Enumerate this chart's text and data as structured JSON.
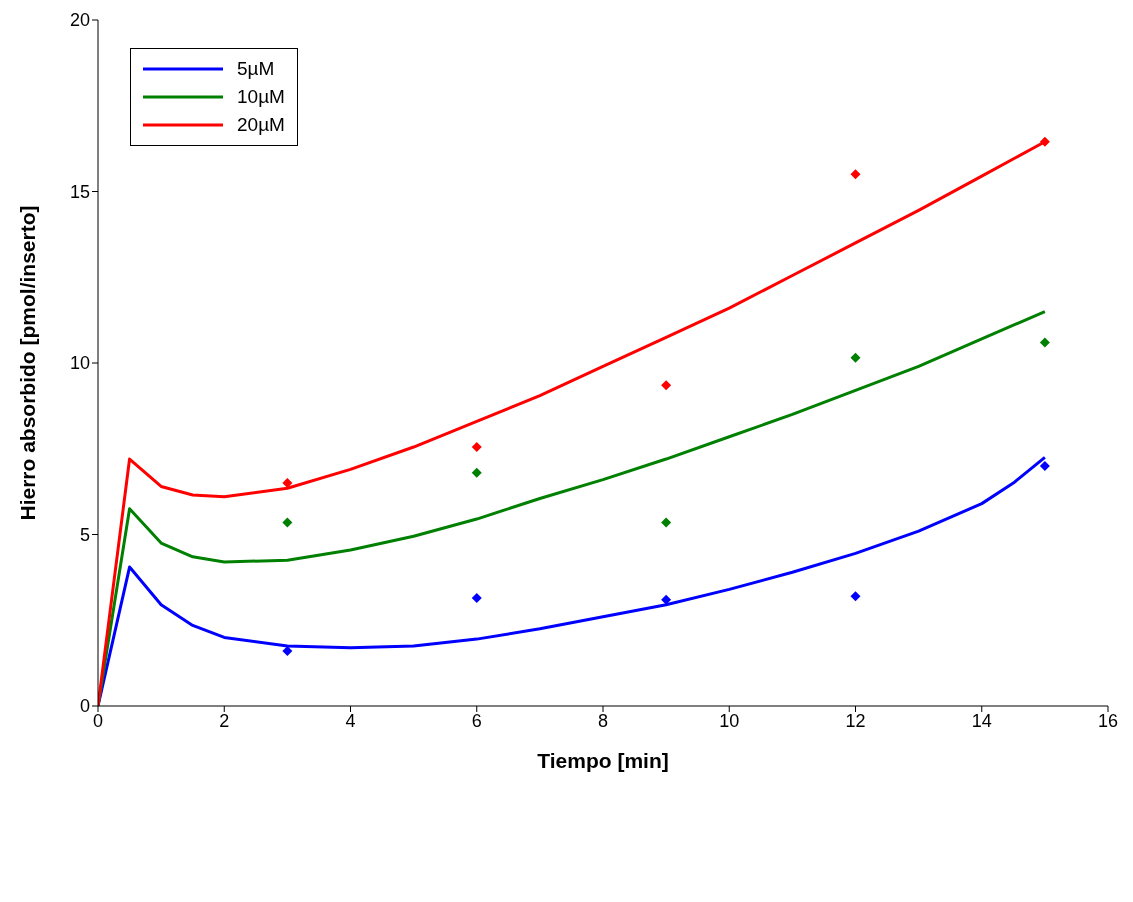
{
  "chart_data": {
    "type": "line",
    "xlabel": "Tiempo [min]",
    "ylabel": "Hierro absorbido [pmol/inserto]",
    "xlim": [
      0,
      16
    ],
    "xticks": [
      0,
      2,
      4,
      6,
      8,
      10,
      12,
      14,
      16
    ],
    "ylim": [
      0,
      20
    ],
    "yticks": [
      0,
      5,
      10,
      15,
      20
    ],
    "grid": false,
    "legend": "top left",
    "line_style": "solid",
    "series": [
      {
        "name": "5µM",
        "color": "#0000ff",
        "marker": "none",
        "x": [
          0,
          0.5,
          1,
          1.5,
          2,
          3,
          4,
          5,
          6,
          7,
          8,
          9,
          10,
          11,
          12,
          13,
          14,
          14.5,
          15
        ],
        "values": [
          0,
          4.05,
          2.95,
          2.35,
          2.0,
          1.75,
          1.7,
          1.75,
          1.95,
          2.25,
          2.6,
          2.95,
          3.4,
          3.9,
          4.45,
          5.1,
          5.9,
          6.5,
          7.25
        ]
      },
      {
        "name": "10µM",
        "color": "#008000",
        "marker": "none",
        "x": [
          0,
          0.5,
          1,
          1.5,
          2,
          3,
          4,
          5,
          6,
          7,
          8,
          9,
          10,
          11,
          12,
          13,
          14,
          15
        ],
        "values": [
          0,
          5.75,
          4.75,
          4.35,
          4.2,
          4.25,
          4.55,
          4.95,
          5.45,
          6.05,
          6.6,
          7.2,
          7.85,
          8.5,
          9.2,
          9.9,
          10.7,
          11.5
        ]
      },
      {
        "name": "20µM",
        "color": "#ff0000",
        "marker": "none",
        "x": [
          0,
          0.5,
          1,
          1.5,
          2,
          3,
          4,
          5,
          6,
          7,
          8,
          9,
          10,
          11,
          12,
          13,
          14,
          15
        ],
        "values": [
          0,
          7.2,
          6.4,
          6.15,
          6.1,
          6.35,
          6.9,
          7.55,
          8.3,
          9.05,
          9.9,
          10.75,
          11.6,
          12.55,
          13.5,
          14.45,
          15.45,
          16.45
        ]
      },
      {
        "type": "scatter",
        "color": "#0000ff",
        "marker": "diamond",
        "x": [
          3,
          6,
          9,
          12,
          15
        ],
        "values": [
          1.6,
          3.15,
          3.1,
          3.2,
          7.0
        ]
      },
      {
        "type": "scatter",
        "color": "#008000",
        "marker": "diamond",
        "x": [
          3,
          6,
          9,
          12,
          15
        ],
        "values": [
          5.35,
          6.8,
          5.35,
          10.15,
          10.6
        ]
      },
      {
        "type": "scatter",
        "color": "#ff0000",
        "marker": "diamond",
        "x": [
          3,
          6,
          9,
          12,
          15
        ],
        "values": [
          6.5,
          7.55,
          9.35,
          15.5,
          16.45
        ]
      }
    ]
  }
}
